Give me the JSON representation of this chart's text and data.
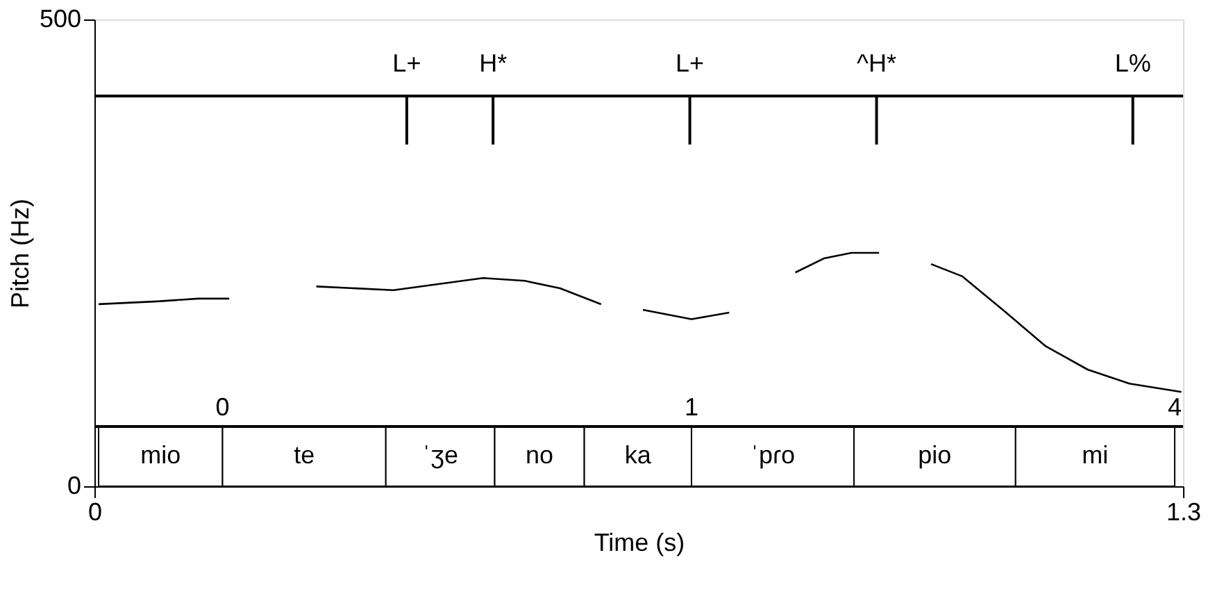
{
  "chart_data": {
    "type": "line",
    "xlabel": "Time (s)",
    "ylabel": "Pitch (Hz)",
    "xlim": [
      0,
      1.3
    ],
    "xticks": [
      0,
      1.3
    ],
    "ylim": [
      0,
      500
    ],
    "yticks": [
      0,
      500
    ],
    "series": [
      {
        "color": "#000000",
        "x": [
          0.005,
          0.075,
          0.124,
          0.161,
          0.2,
          0.265,
          0.357,
          0.464,
          0.514,
          0.556,
          0.605,
          0.63,
          0.655,
          0.713,
          0.758,
          0.8,
          0.837,
          0.871,
          0.904,
          0.937,
          0.97,
          0.999,
          1.036,
          1.086,
          1.136,
          1.186,
          1.236,
          1.298
        ],
        "values": [
          195,
          198,
          201,
          201,
          null,
          214,
          210,
          223,
          220,
          212,
          195,
          null,
          189,
          179,
          186,
          null,
          229,
          244,
          250,
          250,
          null,
          238,
          225,
          188,
          150,
          125,
          110,
          101
        ]
      }
    ],
    "ref_lines": [
      {
        "axis": "y",
        "value": 418,
        "label": null
      },
      {
        "axis": "y",
        "value": 64,
        "label": null
      },
      {
        "axis": "x",
        "value": 0.373,
        "label": "L+"
      },
      {
        "axis": "x",
        "value": 0.476,
        "label": "H*"
      },
      {
        "axis": "x",
        "value": 0.711,
        "label": "L+"
      },
      {
        "axis": "x",
        "value": 0.934,
        "label": "^H*"
      },
      {
        "axis": "x",
        "value": 1.24,
        "label": "L%"
      }
    ],
    "bands": [
      {
        "axis": "x",
        "from": 0.005,
        "to": 0.153,
        "label": "mio"
      },
      {
        "axis": "x",
        "from": 0.153,
        "to": 0.348,
        "label": "te"
      },
      {
        "axis": "x",
        "from": 0.348,
        "to": 0.478,
        "label": "ˈʒe"
      },
      {
        "axis": "x",
        "from": 0.478,
        "to": 0.585,
        "label": "no"
      },
      {
        "axis": "x",
        "from": 0.585,
        "to": 0.713,
        "label": "ka"
      },
      {
        "axis": "x",
        "from": 0.713,
        "to": 0.907,
        "label": "ˈpɾo"
      },
      {
        "axis": "x",
        "from": 0.907,
        "to": 1.1,
        "label": "pio"
      },
      {
        "axis": "x",
        "from": 1.1,
        "to": 1.29,
        "label": "mi"
      }
    ],
    "annotations": [
      {
        "text": "0",
        "x": 0.153,
        "y": 64
      },
      {
        "text": "1",
        "x": 0.713,
        "y": 64
      },
      {
        "text": "4",
        "x": 1.29,
        "y": 64
      }
    ]
  }
}
